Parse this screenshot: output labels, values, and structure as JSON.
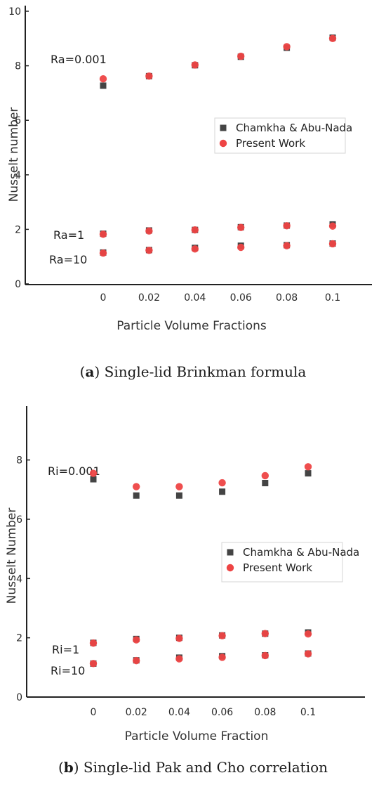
{
  "chart_data": [
    {
      "type": "scatter",
      "x": [
        0,
        0.02,
        0.04,
        0.06,
        0.08,
        0.1
      ],
      "xticks": [
        "0",
        "0.02",
        "0.04",
        "0.06",
        "0.08",
        "0.1"
      ],
      "yticks": [
        "0",
        "2",
        "4",
        "6",
        "8",
        "10"
      ],
      "xlabel": "Particle Volume Fractions",
      "ylabel": "Nusselt number",
      "ylim": [
        0,
        10
      ],
      "legend_position": "center-right",
      "series": [
        {
          "name": "Chamkha & Abu-Nada",
          "marker": "square",
          "color": "#444444",
          "groups": [
            [
              7.27,
              7.62,
              8.02,
              8.33,
              8.66,
              9.03
            ],
            [
              1.84,
              1.96,
              1.98,
              2.08,
              2.14,
              2.18
            ],
            [
              1.15,
              1.24,
              1.32,
              1.4,
              1.42,
              1.48
            ]
          ]
        },
        {
          "name": "Present Work",
          "marker": "circle",
          "color": "#ee4444",
          "groups": [
            [
              7.52,
              7.62,
              8.03,
              8.35,
              8.7,
              9.0
            ],
            [
              1.82,
              1.94,
              1.98,
              2.07,
              2.13,
              2.12
            ],
            [
              1.13,
              1.23,
              1.28,
              1.34,
              1.4,
              1.47
            ]
          ]
        }
      ],
      "annotations": [
        "Ra=0.001",
        "Ra=1",
        "Ra=10"
      ]
    },
    {
      "type": "scatter",
      "x": [
        0,
        0.02,
        0.04,
        0.06,
        0.08,
        0.1
      ],
      "xticks": [
        "0",
        "0.02",
        "0.04",
        "0.06",
        "0.08",
        "0.1"
      ],
      "yticks": [
        "0",
        "2",
        "4",
        "6",
        "8"
      ],
      "xlabel": "Particle Volume Fraction",
      "ylabel": "Nusselt Number",
      "ylim": [
        0,
        9.2
      ],
      "legend_position": "center-right",
      "series": [
        {
          "name": "Chamkha & Abu-Nada",
          "marker": "square",
          "color": "#444444",
          "groups": [
            [
              7.35,
              6.8,
              6.8,
              6.93,
              7.22,
              7.55
            ],
            [
              1.83,
              1.96,
              2.0,
              2.08,
              2.14,
              2.18
            ],
            [
              1.13,
              1.24,
              1.33,
              1.38,
              1.41,
              1.47
            ]
          ]
        },
        {
          "name": "Present Work",
          "marker": "circle",
          "color": "#ee4444",
          "groups": [
            [
              7.55,
              7.1,
              7.1,
              7.23,
              7.47,
              7.77
            ],
            [
              1.82,
              1.93,
              1.98,
              2.07,
              2.14,
              2.13
            ],
            [
              1.13,
              1.23,
              1.29,
              1.34,
              1.4,
              1.46
            ]
          ]
        }
      ],
      "annotations": [
        "Ri=0.001",
        "Ri=1",
        "Ri=10"
      ]
    }
  ],
  "captions": [
    {
      "letter": "a",
      "text": "Single-lid Brinkman formula"
    },
    {
      "letter": "b",
      "text": "Single-lid Pak and Cho correlation"
    }
  ]
}
